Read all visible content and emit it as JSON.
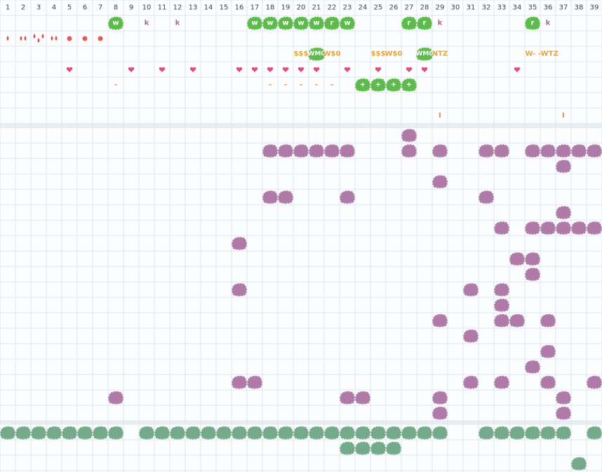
{
  "header": {
    "columns": [
      1,
      2,
      3,
      4,
      5,
      6,
      7,
      8,
      9,
      10,
      11,
      12,
      13,
      14,
      15,
      16,
      17,
      18,
      19,
      20,
      21,
      22,
      23,
      24,
      25,
      26,
      27,
      28,
      29,
      30,
      31,
      32,
      33,
      34,
      35,
      36,
      37,
      38,
      39
    ]
  },
  "top": {
    "row1": {
      "badges": [
        {
          "col": 8,
          "label": "w"
        },
        {
          "col": 17,
          "label": "w"
        },
        {
          "col": 18,
          "label": "w"
        },
        {
          "col": 19,
          "label": "w"
        },
        {
          "col": 20,
          "label": "w"
        },
        {
          "col": 21,
          "label": "w"
        },
        {
          "col": 22,
          "label": "r"
        },
        {
          "col": 23,
          "label": "w"
        },
        {
          "col": 27,
          "label": "r"
        },
        {
          "col": 28,
          "label": "r"
        },
        {
          "col": 35,
          "label": "r"
        }
      ],
      "letters": [
        {
          "col": 10,
          "label": "k"
        },
        {
          "col": 12,
          "label": "k"
        },
        {
          "col": 29,
          "label": "k"
        },
        {
          "col": 36,
          "label": "k"
        }
      ]
    },
    "row2": {
      "drops": [
        {
          "col": 1,
          "count": 1
        },
        {
          "col": 2,
          "count": 2
        },
        {
          "col": 3,
          "count": 3
        },
        {
          "col": 4,
          "count": 2
        }
      ],
      "dots": [
        5,
        6,
        7
      ]
    },
    "row3": {
      "badges": [
        {
          "col": 21,
          "label": "WM0"
        },
        {
          "col": 28,
          "label": "WM0"
        }
      ],
      "texts": [
        {
          "col": 20,
          "label": "$$$"
        },
        {
          "col": 22,
          "label": "W$0"
        },
        {
          "col": 25,
          "label": "$$$"
        },
        {
          "col": 26,
          "label": "W$0"
        },
        {
          "col": 29,
          "label": "NTZ"
        },
        {
          "col": 35.6,
          "label": "W- -WTZ"
        }
      ]
    },
    "row4": {
      "hearts": [
        5,
        9,
        11,
        13,
        16,
        17,
        18,
        19,
        20,
        21,
        23,
        25,
        27,
        28,
        34
      ]
    },
    "row5": {
      "texts": [
        {
          "col": 8,
          "label": "–"
        },
        {
          "col": 18,
          "label": "–"
        },
        {
          "col": 19,
          "label": "–"
        },
        {
          "col": 20,
          "label": "–"
        },
        {
          "col": 21,
          "label": "–"
        },
        {
          "col": 22,
          "label": "–"
        }
      ],
      "badges": [
        {
          "col": 24,
          "label": "+"
        },
        {
          "col": 25,
          "label": "+"
        },
        {
          "col": 26,
          "label": "+"
        },
        {
          "col": 27,
          "label": "+"
        }
      ]
    },
    "row7": {
      "texts": [
        {
          "col": 29,
          "label": "I"
        },
        {
          "col": 37,
          "label": "I"
        }
      ]
    }
  },
  "middle": {
    "rows": [
      [
        27
      ],
      [
        18,
        19,
        20,
        21,
        22,
        23,
        27,
        29,
        32,
        33,
        35,
        36,
        37,
        38,
        39
      ],
      [
        37
      ],
      [
        29
      ],
      [
        18,
        19,
        23,
        32
      ],
      [
        37
      ],
      [
        33,
        35,
        36,
        37,
        38,
        39
      ],
      [
        16
      ],
      [
        34,
        35
      ],
      [
        35
      ],
      [
        16,
        31,
        33
      ],
      [
        33
      ],
      [
        29,
        33,
        34,
        36
      ],
      [
        31
      ],
      [
        36
      ],
      [
        35
      ],
      [
        16,
        17,
        31,
        33,
        36,
        39
      ],
      [
        8,
        23,
        24,
        29,
        37
      ],
      [
        29,
        37
      ]
    ]
  },
  "bottom": {
    "rows": [
      [
        1,
        2,
        3,
        4,
        5,
        6,
        7,
        8,
        10,
        11,
        12,
        13,
        14,
        15,
        16,
        17,
        18,
        19,
        20,
        21,
        22,
        23,
        24,
        25,
        26,
        27,
        28,
        29,
        32,
        33,
        34,
        35,
        36,
        37,
        39
      ],
      [
        23,
        24,
        25,
        26
      ],
      [
        38
      ]
    ]
  }
}
